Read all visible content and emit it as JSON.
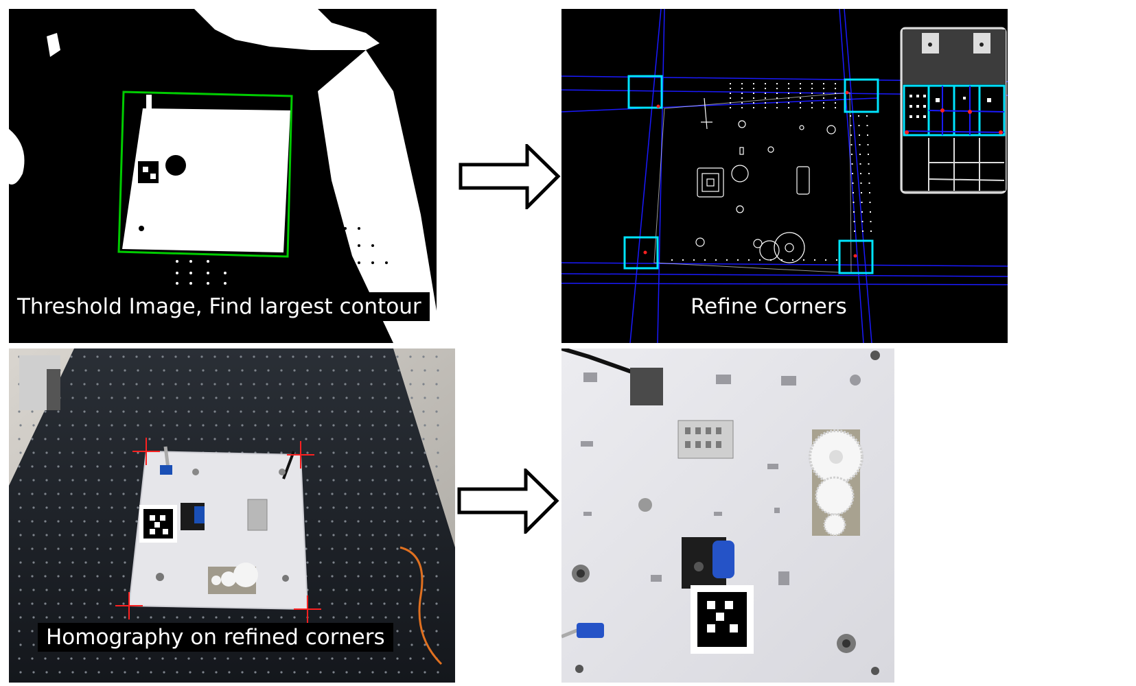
{
  "panels": {
    "threshold": {
      "caption": "Threshold Image, Find largest contour"
    },
    "refine": {
      "caption": "Refine Corners"
    },
    "homography": {
      "caption": "Homography on refined corners"
    },
    "result": {
      "caption": ""
    }
  },
  "colors": {
    "contour": "#00cc00",
    "corner_box": "#00e5ff",
    "lines": "#1a1aff",
    "corner_mark": "#ff2020",
    "background": "#000000",
    "plate": "#e6e6ea"
  },
  "icons": [
    "right-arrow-icon",
    "aruco-marker-icon",
    "gear-icon",
    "connector-icon"
  ]
}
